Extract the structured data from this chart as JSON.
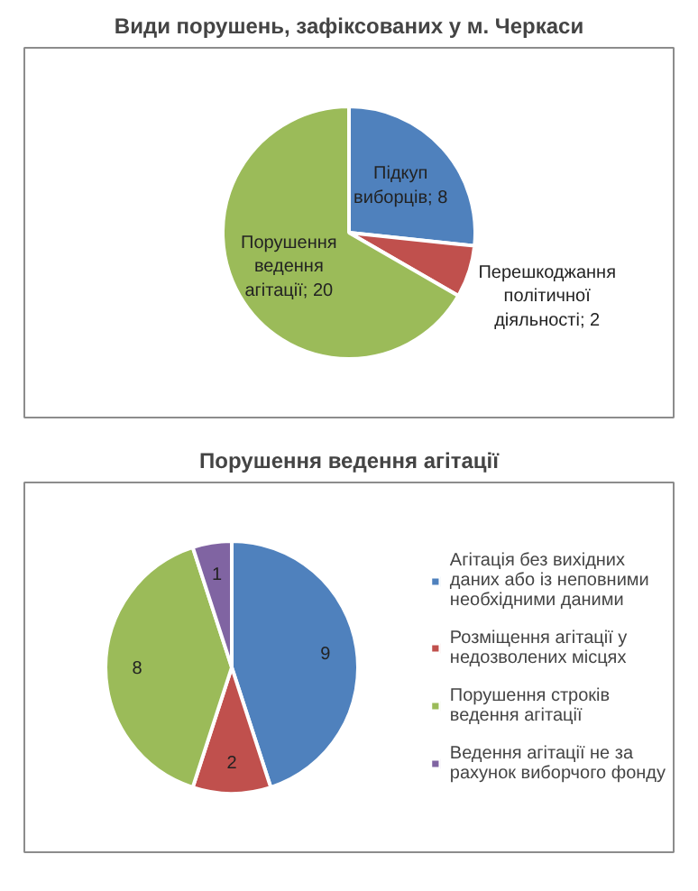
{
  "chart_data": [
    {
      "type": "pie",
      "title": "Види порушень, зафіксованих у м. Черкаси",
      "categories": [
        null,
        null,
        null
      ],
      "values": [
        8,
        2,
        20
      ],
      "value_labels": [
        "Підкуп виборців; 8",
        "Перешкоджання політичної діяльності; 2",
        "Порушення ведення агітації; 20"
      ],
      "colors": [
        "#4f81bd",
        "#c0504d",
        "#9bbb59"
      ]
    },
    {
      "type": "pie",
      "title": "Порушення ведення агітації",
      "categories": [
        "Агітація без вихідних даних або із неповними необхідними даними",
        "Розміщення агітації у недозволених місцях",
        "Порушення строків ведення агітації",
        "Ведення агітації не за рахунок виборчого фонду"
      ],
      "values": [
        9,
        2,
        8,
        1
      ],
      "colors": [
        "#4f81bd",
        "#c0504d",
        "#9bbb59",
        "#8064a2"
      ],
      "data_labels": true,
      "legend": "right"
    }
  ]
}
